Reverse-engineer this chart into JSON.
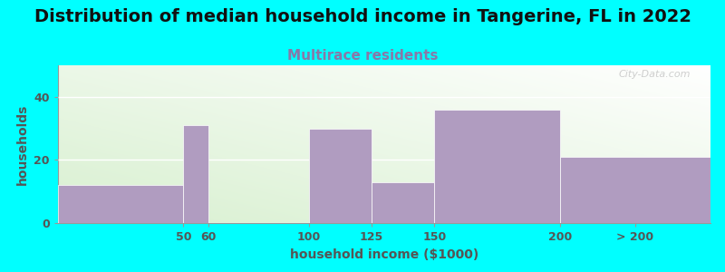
{
  "title": "Distribution of median household income in Tangerine, FL in 2022",
  "subtitle": "Multirace residents",
  "xlabel": "household income ($1000)",
  "ylabel": "households",
  "background_color": "#00FFFF",
  "bar_color": "#b09cc0",
  "categories": [
    "50",
    "60",
    "100",
    "125",
    "150",
    "200",
    "> 200"
  ],
  "bar_lefts": [
    0,
    50,
    60,
    100,
    125,
    150,
    200
  ],
  "bar_widths": [
    50,
    10,
    40,
    25,
    25,
    50,
    60
  ],
  "values": [
    12,
    31,
    0,
    30,
    13,
    36,
    21
  ],
  "xlim": [
    0,
    260
  ],
  "ylim": [
    0,
    50
  ],
  "yticks": [
    0,
    20,
    40
  ],
  "xtick_positions": [
    50,
    60,
    100,
    125,
    150,
    200,
    230
  ],
  "title_fontsize": 14,
  "subtitle_fontsize": 11,
  "subtitle_color": "#8878a8",
  "axis_label_fontsize": 10,
  "tick_fontsize": 9,
  "tick_color": "#555555",
  "watermark": "City-Data.com"
}
